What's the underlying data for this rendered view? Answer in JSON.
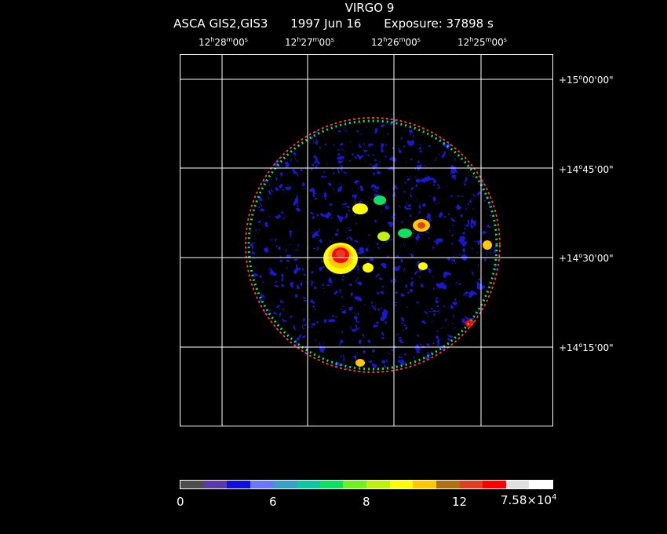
{
  "header": {
    "target": "VIRGO 9",
    "instrument": "ASCA GIS2,GIS3",
    "date": "1997 Jun 16",
    "exposure": "Exposure: 37898 s"
  },
  "ra_labels": [
    {
      "h": "12",
      "m": "28",
      "s": "00"
    },
    {
      "h": "12",
      "m": "27",
      "s": "00"
    },
    {
      "h": "12",
      "m": "26",
      "s": "00"
    },
    {
      "h": "12",
      "m": "25",
      "s": "00"
    }
  ],
  "dec_labels": [
    {
      "d": "+15",
      "m": "00",
      "s": "00"
    },
    {
      "d": "+14",
      "m": "45",
      "s": "00"
    },
    {
      "d": "+14",
      "m": "30",
      "s": "00"
    },
    {
      "d": "+14",
      "m": "15",
      "s": "00"
    }
  ],
  "colorbar": {
    "colors": [
      "#4d4d4d",
      "#5a3aa8",
      "#1010d8",
      "#6a78ff",
      "#3aa0c8",
      "#10c8a0",
      "#10e060",
      "#70f020",
      "#c0f010",
      "#ffff00",
      "#ffc800",
      "#b07010",
      "#e04020",
      "#ff0000",
      "#e0e0e0",
      "#ffffff"
    ],
    "tick0": "0",
    "tick1": "6",
    "tick2": "8",
    "tick3": "12",
    "tick_max_base": "7.58×10",
    "tick_max_exp": "4"
  }
}
